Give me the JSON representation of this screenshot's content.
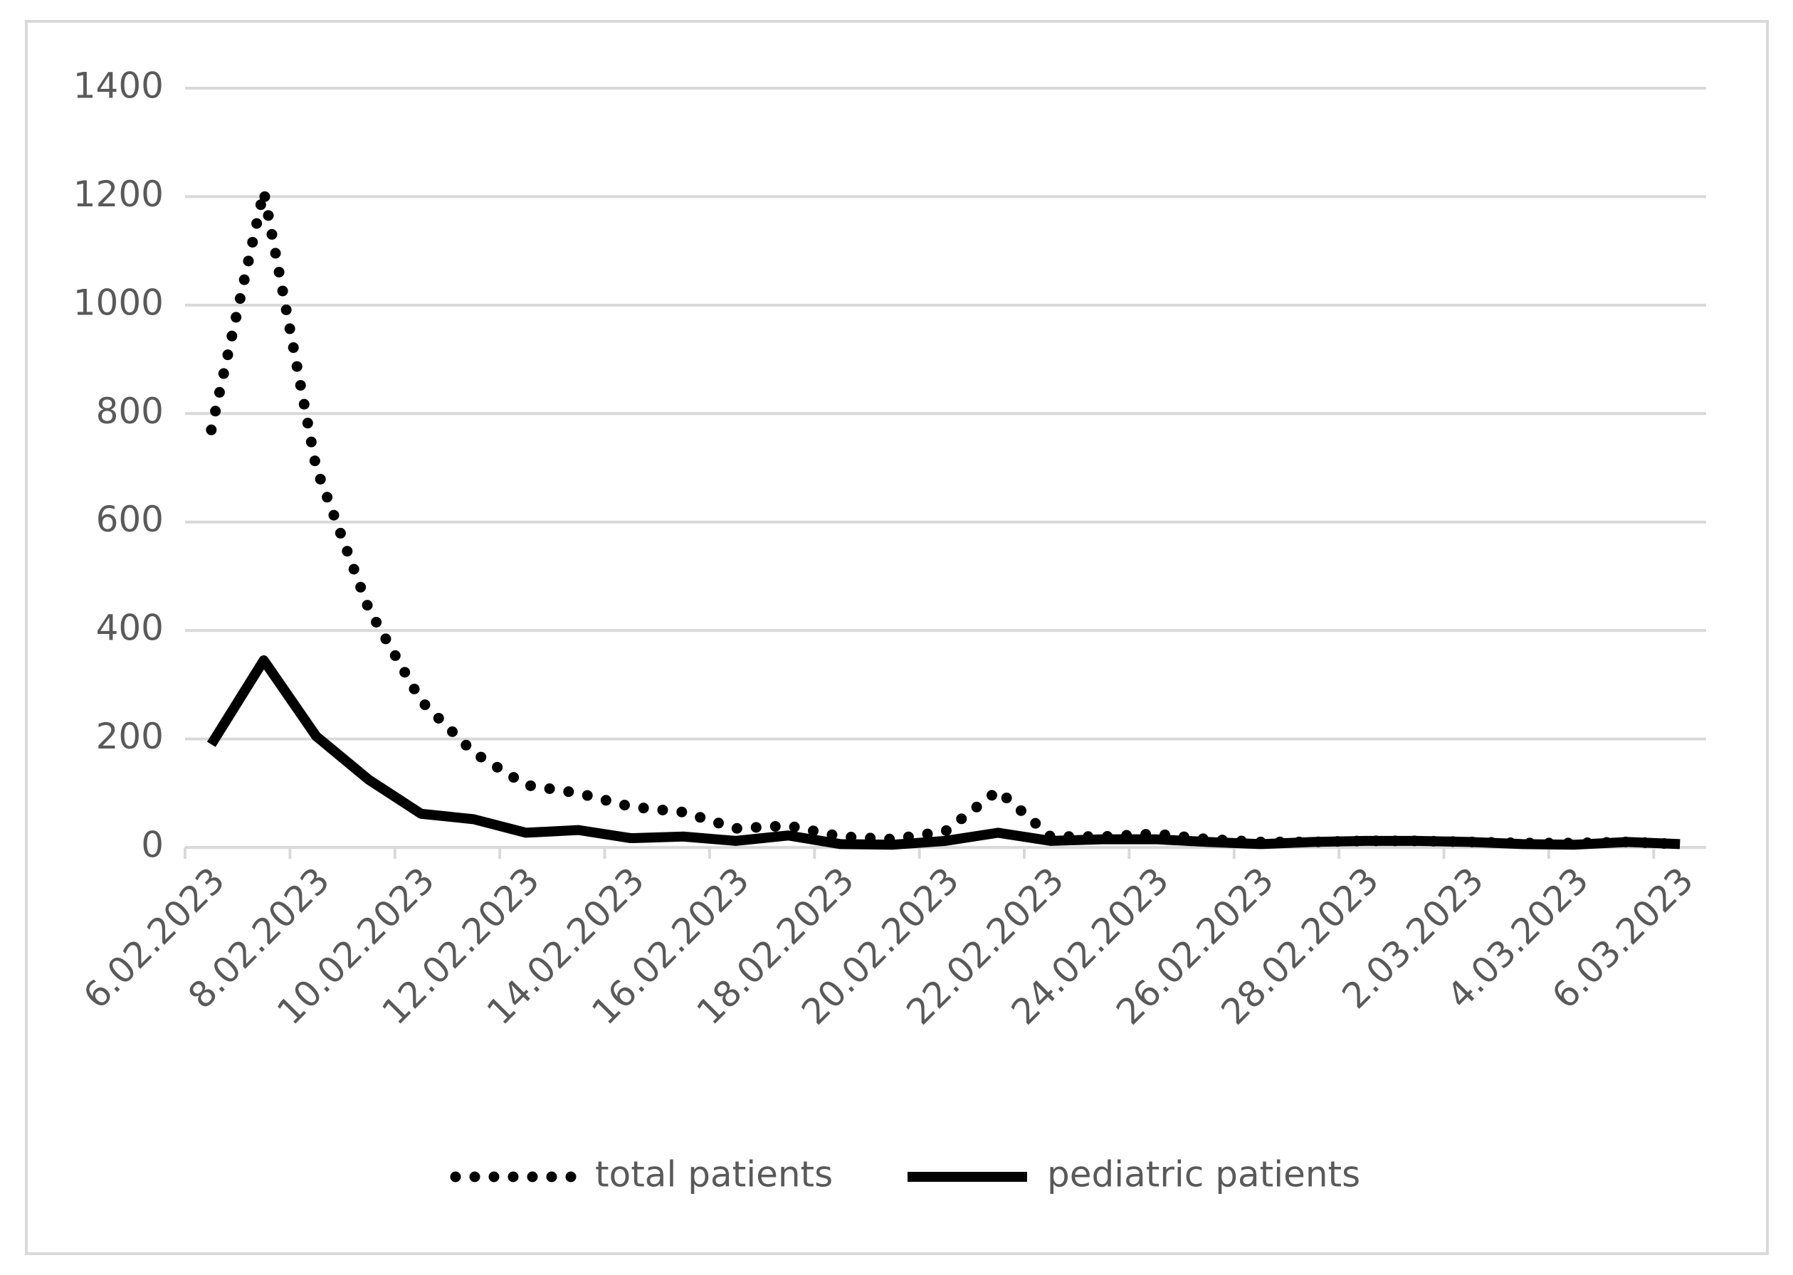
{
  "chart_data": {
    "type": "line",
    "categories": [
      "6.02.2023",
      null,
      "8.02.2023",
      null,
      "10.02.2023",
      null,
      "12.02.2023",
      null,
      "14.02.2023",
      null,
      "16.02.2023",
      null,
      "18.02.2023",
      null,
      "20.02.2023",
      null,
      "22.02.2023",
      null,
      "24.02.2023",
      null,
      "26.02.2023",
      null,
      "28.02.2023",
      null,
      "2.03.2023",
      null,
      "4.03.2023",
      null,
      "6.03.2023"
    ],
    "series": [
      {
        "name": "total patients",
        "color": "#000000",
        "line_style": "dotted",
        "values": [
          770,
          1210,
          700,
          440,
          270,
          175,
          115,
          100,
          75,
          65,
          35,
          40,
          20,
          15,
          30,
          105,
          20,
          20,
          25,
          15,
          10,
          10,
          12,
          12,
          10,
          8,
          8,
          10,
          6
        ]
      },
      {
        "name": "pediatric patients",
        "color": "#000000",
        "line_style": "solid",
        "values": [
          190,
          345,
          205,
          125,
          62,
          52,
          27,
          32,
          17,
          20,
          12,
          22,
          6,
          5,
          12,
          27,
          12,
          15,
          15,
          10,
          6,
          10,
          12,
          12,
          10,
          6,
          5,
          10,
          6
        ]
      }
    ],
    "ylim": [
      0,
      1400
    ],
    "yticks": [
      0,
      200,
      400,
      600,
      800,
      1000,
      1200,
      1400
    ],
    "grid": true,
    "legend": "bottom"
  }
}
